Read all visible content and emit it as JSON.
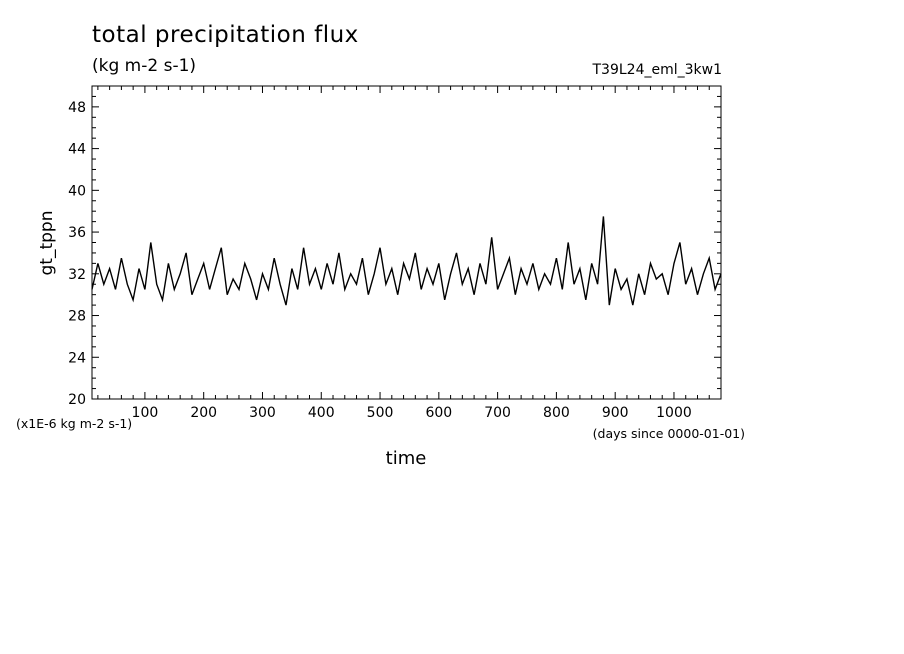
{
  "chart_data": {
    "type": "line",
    "title": "total precipitation flux",
    "subtitle": "(kg m-2 s-1)",
    "annotation_right": "T39L24_eml_3kw1",
    "xlabel": "time",
    "xunits": "(days since 0000-01-01)",
    "ylabel": "gt_tppn",
    "yunits": "(x1E-6 kg m-2 s-1)",
    "xlim": [
      10,
      1080
    ],
    "ylim": [
      20,
      50
    ],
    "xticks": [
      100,
      200,
      300,
      400,
      500,
      600,
      700,
      800,
      900,
      1000
    ],
    "xtick_labels": [
      "100",
      "200",
      "300",
      "400",
      "500",
      "600",
      "700",
      "800",
      "900",
      "1000"
    ],
    "yticks": [
      20,
      24,
      28,
      32,
      36,
      40,
      44,
      48
    ],
    "ytick_labels": [
      "20",
      "24",
      "28",
      "32",
      "36",
      "40",
      "44",
      "48"
    ],
    "grid": false,
    "series": [
      {
        "color": "#000000",
        "x": [
          10,
          20,
          30,
          40,
          50,
          60,
          70,
          80,
          90,
          100,
          110,
          120,
          130,
          140,
          150,
          160,
          170,
          180,
          190,
          200,
          210,
          220,
          230,
          240,
          250,
          260,
          270,
          280,
          290,
          300,
          310,
          320,
          330,
          340,
          350,
          360,
          370,
          380,
          390,
          400,
          410,
          420,
          430,
          440,
          450,
          460,
          470,
          480,
          490,
          500,
          510,
          520,
          530,
          540,
          550,
          560,
          570,
          580,
          590,
          600,
          610,
          620,
          630,
          640,
          650,
          660,
          670,
          680,
          690,
          700,
          710,
          720,
          730,
          740,
          750,
          760,
          770,
          780,
          790,
          800,
          810,
          820,
          830,
          840,
          850,
          860,
          870,
          880,
          890,
          900,
          910,
          920,
          930,
          940,
          950,
          960,
          970,
          980,
          990,
          1000,
          1010,
          1020,
          1030,
          1040,
          1050,
          1060,
          1070,
          1080
        ],
        "y": [
          30.5,
          33.0,
          31.0,
          32.5,
          30.5,
          33.5,
          31.0,
          29.5,
          32.5,
          30.5,
          35.0,
          31.0,
          29.5,
          33.0,
          30.5,
          32.0,
          34.0,
          30.0,
          31.5,
          33.0,
          30.5,
          32.5,
          34.5,
          30.0,
          31.5,
          30.5,
          33.0,
          31.5,
          29.5,
          32.0,
          30.5,
          33.5,
          31.0,
          29.0,
          32.5,
          30.5,
          34.5,
          31.0,
          32.5,
          30.5,
          33.0,
          31.0,
          34.0,
          30.5,
          32.0,
          31.0,
          33.5,
          30.0,
          32.0,
          34.5,
          31.0,
          32.5,
          30.0,
          33.0,
          31.5,
          34.0,
          30.5,
          32.5,
          31.0,
          33.0,
          29.5,
          32.0,
          34.0,
          31.0,
          32.5,
          30.0,
          33.0,
          31.0,
          35.5,
          30.5,
          32.0,
          33.5,
          30.0,
          32.5,
          31.0,
          33.0,
          30.5,
          32.0,
          31.0,
          33.5,
          30.5,
          35.0,
          31.0,
          32.5,
          29.5,
          33.0,
          31.0,
          37.5,
          29.0,
          32.5,
          30.5,
          31.5,
          29.0,
          32.0,
          30.0,
          33.0,
          31.5,
          32.0,
          30.0,
          33.0,
          35.0,
          31.0,
          32.5,
          30.0,
          32.0,
          33.5,
          30.5,
          32.0
        ]
      }
    ]
  }
}
